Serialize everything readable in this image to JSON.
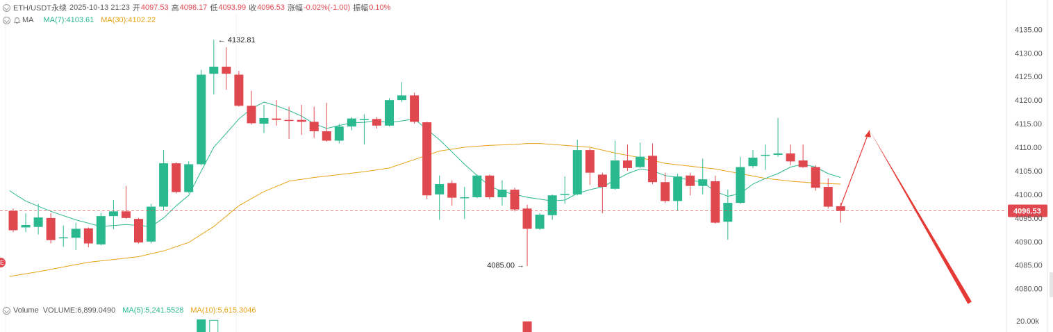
{
  "header": {
    "symbol": "ETH/USDT永续",
    "datetime": "2025-10-13 21:23",
    "open_label": "开",
    "open": "4097.53",
    "high_label": "高",
    "high": "4098.17",
    "low_label": "低",
    "low": "4093.99",
    "close_label": "收",
    "close": "4096.53",
    "change_label": "涨幅",
    "change": "-0.02%(-1.00)",
    "amp_label": "振幅",
    "amp": "0.10%"
  },
  "ma_legend": {
    "label": "MA",
    "ma7": "MA(7):4103.61",
    "ma30": "MA(30):4102.22"
  },
  "volume_legend": {
    "label": "Volume",
    "volume": "VOLUME:6,899.0490",
    "ma5": "MA(5):5,241.5528",
    "ma10": "MA(10):5,615.3046"
  },
  "colors": {
    "up": "#2ab88f",
    "down": "#e04850",
    "ma7": "#2ab88f",
    "ma30": "#e8a317",
    "arrow": "#e53935"
  },
  "chart_data": {
    "type": "candlestick",
    "ylim": [
      4077,
      4138
    ],
    "y_ticks": [
      "4135.00",
      "4130.00",
      "4125.00",
      "4120.00",
      "4115.00",
      "4110.00",
      "4105.00",
      "4100.00",
      "4095.00",
      "4090.00",
      "4085.00",
      "4080.00"
    ],
    "volume_tick": "20.00k",
    "current_price": "4096.53",
    "high_marker": "4132.81",
    "low_marker": "4085.00",
    "candles": [
      {
        "o": 4096.5,
        "c": 4092.4,
        "h": 4097.0,
        "l": 4092.0
      },
      {
        "o": 4093.0,
        "c": 4093.5,
        "h": 4096.0,
        "l": 4092.0
      },
      {
        "o": 4093.1,
        "c": 4095.1,
        "h": 4098.0,
        "l": 4091.5
      },
      {
        "o": 4095.0,
        "c": 4090.3,
        "h": 4096.0,
        "l": 4089.6
      },
      {
        "o": 4090.8,
        "c": 4090.9,
        "h": 4093.4,
        "l": 4088.9
      },
      {
        "o": 4090.8,
        "c": 4092.7,
        "h": 4094.0,
        "l": 4088.2
      },
      {
        "o": 4092.8,
        "c": 4089.6,
        "h": 4093.0,
        "l": 4088.8
      },
      {
        "o": 4089.4,
        "c": 4095.4,
        "h": 4096.1,
        "l": 4089.2
      },
      {
        "o": 4095.4,
        "c": 4096.4,
        "h": 4098.8,
        "l": 4092.6
      },
      {
        "o": 4096.4,
        "c": 4095.0,
        "h": 4101.8,
        "l": 4094.8
      },
      {
        "o": 4094.8,
        "c": 4089.8,
        "h": 4095.0,
        "l": 4089.6
      },
      {
        "o": 4090.0,
        "c": 4097.4,
        "h": 4098.0,
        "l": 4089.6
      },
      {
        "o": 4097.4,
        "c": 4106.6,
        "h": 4109.4,
        "l": 4096.6
      },
      {
        "o": 4106.6,
        "c": 4100.5,
        "h": 4106.8,
        "l": 4100.2
      },
      {
        "o": 4100.5,
        "c": 4106.4,
        "h": 4107.0,
        "l": 4100.3
      },
      {
        "o": 4106.4,
        "c": 4125.4,
        "h": 4126.4,
        "l": 4106.2
      },
      {
        "o": 4125.6,
        "c": 4127.1,
        "h": 4132.8,
        "l": 4121.2
      },
      {
        "o": 4127.1,
        "c": 4125.6,
        "h": 4131.2,
        "l": 4122.2
      },
      {
        "o": 4125.4,
        "c": 4118.8,
        "h": 4126.2,
        "l": 4118.6
      },
      {
        "o": 4118.8,
        "c": 4115.1,
        "h": 4122.0,
        "l": 4114.8
      },
      {
        "o": 4115.0,
        "c": 4116.2,
        "h": 4119.0,
        "l": 4113.0
      },
      {
        "o": 4116.1,
        "c": 4115.8,
        "h": 4120.0,
        "l": 4114.6
      },
      {
        "o": 4115.8,
        "c": 4115.6,
        "h": 4118.6,
        "l": 4111.8
      },
      {
        "o": 4115.8,
        "c": 4115.4,
        "h": 4119.0,
        "l": 4112.6
      },
      {
        "o": 4115.4,
        "c": 4113.4,
        "h": 4118.6,
        "l": 4112.0
      },
      {
        "o": 4113.4,
        "c": 4111.4,
        "h": 4119.4,
        "l": 4111.2
      },
      {
        "o": 4111.4,
        "c": 4114.4,
        "h": 4115.0,
        "l": 4110.8
      },
      {
        "o": 4114.4,
        "c": 4116.1,
        "h": 4116.4,
        "l": 4113.6
      },
      {
        "o": 4115.8,
        "c": 4116.0,
        "h": 4117.0,
        "l": 4110.6
      },
      {
        "o": 4116.0,
        "c": 4114.6,
        "h": 4116.4,
        "l": 4114.0
      },
      {
        "o": 4114.6,
        "c": 4120.0,
        "h": 4120.4,
        "l": 4114.4
      },
      {
        "o": 4120.0,
        "c": 4121.0,
        "h": 4123.8,
        "l": 4119.6
      },
      {
        "o": 4121.0,
        "c": 4115.4,
        "h": 4121.6,
        "l": 4115.0
      },
      {
        "o": 4115.3,
        "c": 4099.8,
        "h": 4115.4,
        "l": 4099.0
      },
      {
        "o": 4100.0,
        "c": 4102.2,
        "h": 4104.0,
        "l": 4094.6
      },
      {
        "o": 4102.4,
        "c": 4099.3,
        "h": 4103.0,
        "l": 4097.6
      },
      {
        "o": 4099.3,
        "c": 4099.4,
        "h": 4101.6,
        "l": 4094.8
      },
      {
        "o": 4099.4,
        "c": 4104.0,
        "h": 4104.2,
        "l": 4099.2
      },
      {
        "o": 4104.0,
        "c": 4099.4,
        "h": 4104.2,
        "l": 4099.0
      },
      {
        "o": 4099.4,
        "c": 4101.0,
        "h": 4103.0,
        "l": 4097.6
      },
      {
        "o": 4101.0,
        "c": 4096.8,
        "h": 4101.4,
        "l": 4096.4
      },
      {
        "o": 4097.0,
        "c": 4092.7,
        "h": 4097.8,
        "l": 4084.8
      },
      {
        "o": 4092.7,
        "c": 4095.7,
        "h": 4096.0,
        "l": 4092.5
      },
      {
        "o": 4095.6,
        "c": 4099.8,
        "h": 4100.0,
        "l": 4094.6
      },
      {
        "o": 4100.0,
        "c": 4100.1,
        "h": 4103.8,
        "l": 4098.0
      },
      {
        "o": 4100.0,
        "c": 4109.4,
        "h": 4111.6,
        "l": 4099.8
      },
      {
        "o": 4109.4,
        "c": 4104.6,
        "h": 4109.8,
        "l": 4102.0
      },
      {
        "o": 4104.2,
        "c": 4101.6,
        "h": 4104.6,
        "l": 4096.0
      },
      {
        "o": 4101.2,
        "c": 4107.2,
        "h": 4111.4,
        "l": 4101.0
      },
      {
        "o": 4107.2,
        "c": 4105.6,
        "h": 4110.6,
        "l": 4105.0
      },
      {
        "o": 4105.8,
        "c": 4108.0,
        "h": 4111.0,
        "l": 4105.6
      },
      {
        "o": 4108.2,
        "c": 4102.6,
        "h": 4110.8,
        "l": 4102.2
      },
      {
        "o": 4102.6,
        "c": 4098.6,
        "h": 4104.6,
        "l": 4098.2
      },
      {
        "o": 4098.6,
        "c": 4103.8,
        "h": 4104.4,
        "l": 4096.6
      },
      {
        "o": 4104.0,
        "c": 4101.8,
        "h": 4104.6,
        "l": 4099.8
      },
      {
        "o": 4101.8,
        "c": 4103.2,
        "h": 4107.6,
        "l": 4100.0
      },
      {
        "o": 4102.8,
        "c": 4094.0,
        "h": 4104.0,
        "l": 4093.8
      },
      {
        "o": 4094.2,
        "c": 4098.2,
        "h": 4101.0,
        "l": 4090.4
      },
      {
        "o": 4098.2,
        "c": 4105.8,
        "h": 4108.0,
        "l": 4098.0
      },
      {
        "o": 4106.0,
        "c": 4107.8,
        "h": 4109.4,
        "l": 4105.6
      },
      {
        "o": 4108.2,
        "c": 4108.4,
        "h": 4110.6,
        "l": 4105.2
      },
      {
        "o": 4108.4,
        "c": 4108.7,
        "h": 4116.2,
        "l": 4108.0
      },
      {
        "o": 4108.7,
        "c": 4107.0,
        "h": 4110.6,
        "l": 4106.2
      },
      {
        "o": 4107.2,
        "c": 4105.8,
        "h": 4110.6,
        "l": 4105.6
      },
      {
        "o": 4105.8,
        "c": 4101.4,
        "h": 4106.2,
        "l": 4100.8
      },
      {
        "o": 4101.6,
        "c": 4097.4,
        "h": 4103.4,
        "l": 4097.0
      },
      {
        "o": 4097.5,
        "c": 4096.5,
        "h": 4098.2,
        "l": 4094.0
      }
    ],
    "ma7": [
      [
        -0.3,
        4100.8
      ],
      [
        1,
        4098.6
      ],
      [
        3,
        4096.4
      ],
      [
        5,
        4094.6
      ],
      [
        7,
        4093.2
      ],
      [
        9,
        4093.6
      ],
      [
        11,
        4093.2
      ],
      [
        12,
        4095.0
      ],
      [
        13,
        4097.6
      ],
      [
        14,
        4099.8
      ],
      [
        15,
        4105.0
      ],
      [
        16,
        4110.0
      ],
      [
        17,
        4113.0
      ],
      [
        18,
        4116.0
      ],
      [
        19,
        4118.2
      ],
      [
        20,
        4119.6
      ],
      [
        21,
        4118.8
      ],
      [
        22,
        4117.8
      ],
      [
        23,
        4116.6
      ],
      [
        24,
        4115.0
      ],
      [
        25,
        4114.0
      ],
      [
        26,
        4114.6
      ],
      [
        27,
        4115.2
      ],
      [
        28,
        4115.3
      ],
      [
        29,
        4115.6
      ],
      [
        30,
        4115.2
      ],
      [
        31,
        4115.6
      ],
      [
        32,
        4116.0
      ],
      [
        33,
        4113.8
      ],
      [
        34,
        4111.6
      ],
      [
        35,
        4109.0
      ],
      [
        36,
        4106.4
      ],
      [
        37,
        4104.0
      ],
      [
        38,
        4101.8
      ],
      [
        39,
        4100.6
      ],
      [
        40,
        4100.0
      ],
      [
        41,
        4099.4
      ],
      [
        42,
        4099.0
      ],
      [
        43,
        4098.6
      ],
      [
        44,
        4098.8
      ],
      [
        45,
        4100.2
      ],
      [
        46,
        4101.0
      ],
      [
        47,
        4101.6
      ],
      [
        48,
        4103.0
      ],
      [
        49,
        4104.4
      ],
      [
        50,
        4105.4
      ],
      [
        51,
        4105.0
      ],
      [
        52,
        4104.0
      ],
      [
        53,
        4103.6
      ],
      [
        54,
        4103.0
      ],
      [
        55,
        4102.6
      ],
      [
        56,
        4100.6
      ],
      [
        57,
        4099.6
      ],
      [
        58,
        4100.2
      ],
      [
        59,
        4102.2
      ],
      [
        60,
        4103.4
      ],
      [
        61,
        4104.4
      ],
      [
        62,
        4105.8
      ],
      [
        63,
        4106.4
      ],
      [
        64,
        4105.8
      ],
      [
        65,
        4104.4
      ],
      [
        66,
        4103.6
      ]
    ],
    "ma30": [
      [
        -0.3,
        4082.6
      ],
      [
        2,
        4083.6
      ],
      [
        4,
        4084.6
      ],
      [
        6,
        4085.6
      ],
      [
        8,
        4086.2
      ],
      [
        10,
        4086.8
      ],
      [
        12,
        4088.0
      ],
      [
        14,
        4089.8
      ],
      [
        16,
        4093.2
      ],
      [
        18,
        4097.6
      ],
      [
        20,
        4100.6
      ],
      [
        22,
        4102.8
      ],
      [
        24,
        4103.6
      ],
      [
        26,
        4104.2
      ],
      [
        28,
        4104.8
      ],
      [
        30,
        4105.6
      ],
      [
        32,
        4107.4
      ],
      [
        34,
        4109.2
      ],
      [
        36,
        4110.0
      ],
      [
        38,
        4110.4
      ],
      [
        40,
        4110.6
      ],
      [
        41,
        4110.8
      ],
      [
        42,
        4110.8
      ],
      [
        44,
        4110.4
      ],
      [
        46,
        4110.0
      ],
      [
        48,
        4108.8
      ],
      [
        50,
        4107.8
      ],
      [
        52,
        4106.6
      ],
      [
        54,
        4106.0
      ],
      [
        56,
        4105.4
      ],
      [
        58,
        4104.4
      ],
      [
        60,
        4103.4
      ],
      [
        62,
        4102.8
      ],
      [
        64,
        4102.4
      ],
      [
        66,
        4102.2
      ]
    ],
    "volume_bars": [
      {
        "i": 15,
        "dir": "up",
        "v": 20.2,
        "style": "filled"
      },
      {
        "i": 16,
        "dir": "up",
        "v": 18.6,
        "style": "hollow"
      },
      {
        "i": 41,
        "dir": "down",
        "v": 17.0,
        "style": "filled"
      }
    ],
    "projection": [
      [
        66,
        4097.5
      ],
      [
        68.3,
        4113.6
      ],
      [
        76.3,
        4077.0
      ]
    ]
  }
}
